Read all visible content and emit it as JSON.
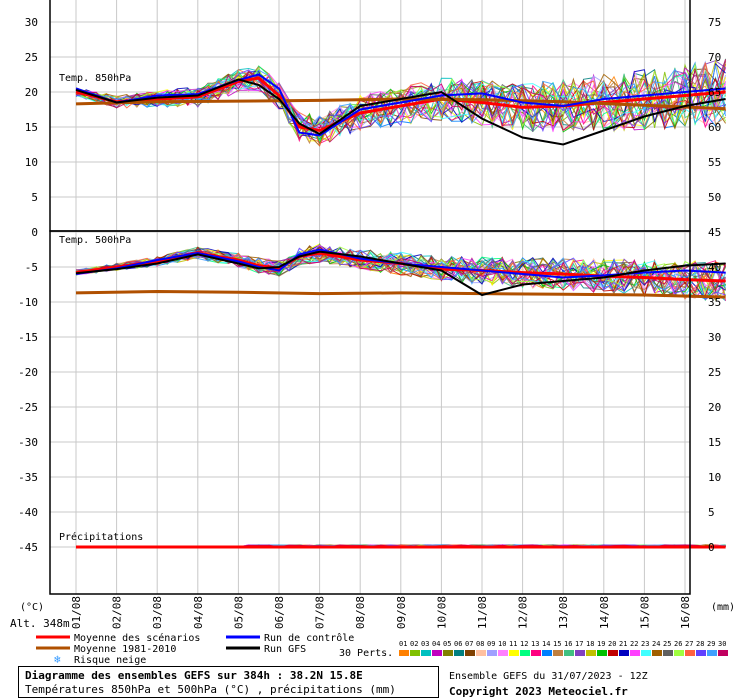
{
  "chart_data": {
    "type": "line",
    "x_dates": [
      "01/08",
      "02/08",
      "03/08",
      "04/08",
      "05/08",
      "06/08",
      "07/08",
      "08/08",
      "09/08",
      "10/08",
      "11/08",
      "12/08",
      "13/08",
      "14/08",
      "15/08",
      "16/08"
    ],
    "panels": [
      {
        "label": "Temp. 850hPa",
        "left_ticks": [
          "30",
          "25",
          "20",
          "15",
          "10",
          "5"
        ],
        "right_ticks": [
          "75",
          "70",
          "65",
          "60",
          "55",
          "50"
        ],
        "ylim": [
          0,
          33
        ],
        "series": [
          {
            "name": "Moyenne des scénarios",
            "color": "#ff0000",
            "x": [
              0,
              1,
              2,
              3,
              4,
              4.5,
              5,
              5.5,
              6,
              7,
              8,
              9,
              10,
              11,
              12,
              13,
              14,
              15,
              16
            ],
            "y": [
              20,
              18.6,
              19,
              19.3,
              21.5,
              22,
              19.5,
              15,
              14.5,
              17,
              18,
              19,
              18.5,
              17.8,
              18,
              18.5,
              19,
              19.5,
              20
            ]
          },
          {
            "name": "Moyenne 1981-2010",
            "color": "#b05000",
            "x": [
              0,
              2,
              4,
              6,
              8,
              10,
              12,
              14,
              16
            ],
            "y": [
              18.3,
              18.6,
              18.7,
              18.8,
              19,
              18.9,
              18.6,
              18.1,
              17.6
            ]
          },
          {
            "name": "Run de contrôle",
            "color": "#0000ff",
            "x": [
              0,
              1,
              2,
              3,
              4,
              4.5,
              5,
              5.5,
              6,
              7,
              8,
              9,
              10,
              11,
              12,
              13,
              14,
              15,
              16
            ],
            "y": [
              20.5,
              18.5,
              19.5,
              19.7,
              21.7,
              22.5,
              20.5,
              14.2,
              13.8,
              17.5,
              18.5,
              19.5,
              19.8,
              18.5,
              18,
              19,
              19.5,
              20,
              20.5
            ]
          },
          {
            "name": "Run GFS",
            "color": "#000000",
            "x": [
              0,
              1,
              2,
              3,
              4,
              4.5,
              5,
              5.5,
              6,
              7,
              8,
              9,
              10,
              11,
              12,
              13,
              14,
              15,
              16
            ],
            "y": [
              20.3,
              18.5,
              19.2,
              19.5,
              21.8,
              21,
              19,
              15.5,
              14,
              18,
              19,
              20,
              16.2,
              13.5,
              12.5,
              14.5,
              16.5,
              18,
              19
            ]
          }
        ]
      },
      {
        "label": "Temp. 500hPa",
        "left_ticks": [
          "0",
          "-5",
          "-10",
          "-15",
          "-20",
          "-25",
          "-30",
          "-35",
          "-40",
          "-45"
        ],
        "right_ticks": [
          "45",
          "40",
          "35",
          "30",
          "25",
          "20",
          "15",
          "10",
          "5",
          "0"
        ],
        "ylim": [
          -50,
          0
        ],
        "series": [
          {
            "name": "Moyenne des scénarios",
            "color": "#ff0000",
            "x": [
              0,
              1,
              2,
              3,
              4,
              4.5,
              5,
              5.5,
              6,
              7,
              8,
              9,
              10,
              11,
              12,
              13,
              14,
              15,
              16
            ],
            "y": [
              -5.8,
              -5,
              -4.2,
              -3,
              -4,
              -4.8,
              -5.2,
              -3.5,
              -3,
              -4,
              -4.5,
              -5.3,
              -5.5,
              -5.8,
              -6,
              -6.3,
              -6.5,
              -6.8,
              -7
            ]
          },
          {
            "name": "Moyenne 1981-2010",
            "color": "#b05000",
            "x": [
              0,
              2,
              4,
              6,
              8,
              10,
              12,
              14,
              16
            ],
            "y": [
              -8.7,
              -8.5,
              -8.6,
              -8.8,
              -8.7,
              -8.8,
              -8.9,
              -9,
              -9.3
            ]
          },
          {
            "name": "Run de contrôle",
            "color": "#0000ff",
            "x": [
              0,
              1,
              2,
              3,
              4,
              4.5,
              5,
              5.5,
              6,
              7,
              8,
              9,
              10,
              11,
              12,
              13,
              14,
              15,
              16
            ],
            "y": [
              -6,
              -5.2,
              -4,
              -3,
              -4.2,
              -5,
              -5.5,
              -3.2,
              -2.5,
              -3.8,
              -4.5,
              -5,
              -5.5,
              -6,
              -6.5,
              -6.2,
              -5.8,
              -5.5,
              -5.8
            ]
          },
          {
            "name": "Run GFS",
            "color": "#000000",
            "x": [
              0,
              1,
              2,
              3,
              4,
              4.5,
              5,
              5.5,
              6,
              7,
              8,
              9,
              10,
              11,
              12,
              13,
              14,
              15,
              16
            ],
            "y": [
              -5.9,
              -5.3,
              -4.5,
              -3.2,
              -4.5,
              -5.2,
              -5,
              -3.5,
              -2.8,
              -3.5,
              -4.5,
              -5.5,
              -9,
              -7.5,
              -7,
              -6.5,
              -5.5,
              -4.8,
              -4.5
            ]
          }
        ]
      },
      {
        "label": "Précipitations",
        "left_ticks": [
          "-40",
          "-45"
        ],
        "right_ticks": [
          "10",
          "5",
          "0"
        ],
        "series": [
          {
            "name": "Moyenne des scénarios",
            "color": "#ff0000",
            "x": [
              0,
              16
            ],
            "y": [
              0,
              0
            ]
          }
        ]
      }
    ],
    "axis_units": {
      "left": "(°C)",
      "right": "(mm)"
    }
  },
  "legend": {
    "altitude": "Alt. 348m",
    "items": [
      {
        "label": "Moyenne des scénarios",
        "color": "#ff0000"
      },
      {
        "label": "Moyenne 1981-2010",
        "color": "#b05000"
      },
      {
        "label": "Run de contrôle",
        "color": "#0000ff"
      },
      {
        "label": "Run GFS",
        "color": "#000000"
      }
    ],
    "snow_risk": "Risque neige",
    "perts_label": "30 Perts.",
    "pert_numbers": [
      "01",
      "02",
      "03",
      "04",
      "05",
      "06",
      "07",
      "08",
      "09",
      "10",
      "11",
      "12",
      "13",
      "14",
      "15",
      "16",
      "17",
      "18",
      "19",
      "20",
      "21",
      "22",
      "23",
      "24",
      "25",
      "26",
      "27",
      "28",
      "29",
      "30"
    ],
    "pert_colors": [
      "#ff8000",
      "#80c000",
      "#00c0c0",
      "#c000c0",
      "#808000",
      "#008080",
      "#804000",
      "#ffc0a0",
      "#a0a0ff",
      "#ff80ff",
      "#ffff00",
      "#00ff80",
      "#ff0080",
      "#0080ff",
      "#c08040",
      "#40c080",
      "#8040c0",
      "#c0c000",
      "#00c000",
      "#c00000",
      "#0000c0",
      "#ff40ff",
      "#40ffff",
      "#a06000",
      "#606060",
      "#a0ff40",
      "#ff6040",
      "#6040ff",
      "#40a0ff",
      "#c00060"
    ]
  },
  "footer": {
    "title": "Diagramme des ensembles GEFS sur 384h : 38.2N 15.8E",
    "subtitle": "Températures 850hPa et 500hPa (°C) , précipitations (mm)",
    "run_info": "Ensemble GEFS du 31/07/2023 - 12Z",
    "copyright": "Copyright 2023 Meteociel.fr"
  }
}
